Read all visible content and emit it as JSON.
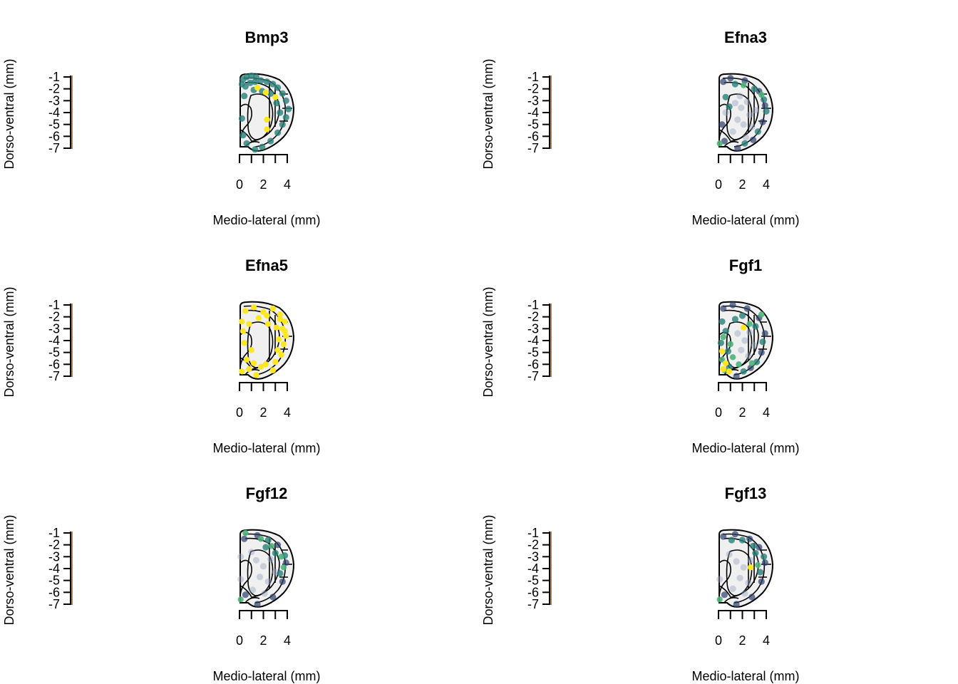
{
  "figure": {
    "background": "#ffffff",
    "layout": "3 rows x 2 columns",
    "palette": {
      "low": "#9aa3c2",
      "mid_low": "#2d3f6b",
      "mid": "#2a7f7b",
      "mid_high": "#4fb27a",
      "high": "#fde725"
    }
  },
  "chart_data": [
    {
      "type": "scatter",
      "title": "Bmp3",
      "xlabel": "Medio-lateral (mm)",
      "ylabel": "Dorso-ventral (mm)",
      "x_ticks": [
        "0",
        "2",
        "4"
      ],
      "y_ticks": [
        "-1",
        "-2",
        "-3",
        "-4",
        "-5",
        "-6",
        "-7"
      ],
      "xlim": [
        0,
        4
      ],
      "ylim": [
        -7,
        -1
      ],
      "grid": false,
      "legend": "none",
      "points": [
        {
          "x": 0.3,
          "y": -1.2,
          "level": 3
        },
        {
          "x": 0.6,
          "y": -1.0,
          "level": 3
        },
        {
          "x": 1.0,
          "y": -0.9,
          "level": 3
        },
        {
          "x": 1.4,
          "y": -1.0,
          "level": 3
        },
        {
          "x": 0.2,
          "y": -1.6,
          "level": 3
        },
        {
          "x": 0.5,
          "y": -1.8,
          "level": 3
        },
        {
          "x": 0.9,
          "y": -1.5,
          "level": 3
        },
        {
          "x": 1.3,
          "y": -1.4,
          "level": 3
        },
        {
          "x": 1.8,
          "y": -1.3,
          "level": 3
        },
        {
          "x": 2.3,
          "y": -1.4,
          "level": 3
        },
        {
          "x": 2.8,
          "y": -1.6,
          "level": 3
        },
        {
          "x": 3.2,
          "y": -1.9,
          "level": 3
        },
        {
          "x": 3.6,
          "y": -2.4,
          "level": 3
        },
        {
          "x": 3.9,
          "y": -3.0,
          "level": 3
        },
        {
          "x": 4.1,
          "y": -3.7,
          "level": 3
        },
        {
          "x": 3.9,
          "y": -4.4,
          "level": 3
        },
        {
          "x": 3.6,
          "y": -5.0,
          "level": 3
        },
        {
          "x": 3.2,
          "y": -5.7,
          "level": 3
        },
        {
          "x": 2.6,
          "y": -6.4,
          "level": 3
        },
        {
          "x": 1.9,
          "y": -6.9,
          "level": 3
        },
        {
          "x": 1.3,
          "y": -7.1,
          "level": 3
        },
        {
          "x": 0.6,
          "y": -6.6,
          "level": 3
        },
        {
          "x": 0.3,
          "y": -5.9,
          "level": 3
        },
        {
          "x": 0.2,
          "y": -4.5,
          "level": 3
        },
        {
          "x": 0.4,
          "y": -2.6,
          "level": 3
        },
        {
          "x": 2.6,
          "y": -2.4,
          "level": 3
        },
        {
          "x": 3.1,
          "y": -3.2,
          "level": 3
        },
        {
          "x": 1.9,
          "y": -2.2,
          "level": 3
        },
        {
          "x": 3.4,
          "y": -4.0,
          "level": 3
        },
        {
          "x": 1.2,
          "y": -2.1,
          "level": 3
        },
        {
          "x": 1.5,
          "y": -1.9,
          "level": 5
        },
        {
          "x": 2.2,
          "y": -2.3,
          "level": 5
        },
        {
          "x": 3.0,
          "y": -2.7,
          "level": 5
        },
        {
          "x": 2.3,
          "y": -4.6,
          "level": 5
        },
        {
          "x": 2.3,
          "y": -5.4,
          "level": 5
        }
      ]
    },
    {
      "type": "scatter",
      "title": "Efna3",
      "xlabel": "Medio-lateral (mm)",
      "ylabel": "Dorso-ventral (mm)",
      "x_ticks": [
        "0",
        "2",
        "4"
      ],
      "y_ticks": [
        "-1",
        "-2",
        "-3",
        "-4",
        "-5",
        "-6",
        "-7"
      ],
      "xlim": [
        0,
        4
      ],
      "ylim": [
        -7,
        -1
      ],
      "grid": false,
      "legend": "none",
      "points": [
        {
          "x": 1.4,
          "y": -3.2,
          "level": 1
        },
        {
          "x": 1.9,
          "y": -3.6,
          "level": 1
        },
        {
          "x": 2.4,
          "y": -3.1,
          "level": 1
        },
        {
          "x": 2.6,
          "y": -4.2,
          "level": 1
        },
        {
          "x": 1.6,
          "y": -4.6,
          "level": 1
        },
        {
          "x": 2.1,
          "y": -5.0,
          "level": 1
        },
        {
          "x": 2.8,
          "y": -5.2,
          "level": 1
        },
        {
          "x": 1.2,
          "y": -5.6,
          "level": 1
        },
        {
          "x": 1.8,
          "y": -2.6,
          "level": 1
        },
        {
          "x": 3.1,
          "y": -3.8,
          "level": 1
        },
        {
          "x": 0.6,
          "y": -4.0,
          "level": 1
        },
        {
          "x": 2.3,
          "y": -6.1,
          "level": 1
        },
        {
          "x": 0.4,
          "y": -1.4,
          "level": 2
        },
        {
          "x": 1.0,
          "y": -1.1,
          "level": 2
        },
        {
          "x": 2.2,
          "y": -1.3,
          "level": 2
        },
        {
          "x": 3.4,
          "y": -2.2,
          "level": 2
        },
        {
          "x": 3.9,
          "y": -3.4,
          "level": 2
        },
        {
          "x": 3.7,
          "y": -4.8,
          "level": 2
        },
        {
          "x": 2.9,
          "y": -6.3,
          "level": 2
        },
        {
          "x": 1.6,
          "y": -7.0,
          "level": 2
        },
        {
          "x": 0.5,
          "y": -6.4,
          "level": 2
        },
        {
          "x": 0.3,
          "y": -5.0,
          "level": 2
        },
        {
          "x": 3.0,
          "y": -2.0,
          "level": 3
        },
        {
          "x": 3.8,
          "y": -2.9,
          "level": 3
        },
        {
          "x": 4.0,
          "y": -3.9,
          "level": 3
        },
        {
          "x": 0.6,
          "y": -2.7,
          "level": 3
        },
        {
          "x": 1.4,
          "y": -1.6,
          "level": 3
        },
        {
          "x": 3.3,
          "y": -5.6,
          "level": 3
        },
        {
          "x": 2.2,
          "y": -6.6,
          "level": 3
        },
        {
          "x": 0.9,
          "y": -3.5,
          "level": 3
        },
        {
          "x": 2.1,
          "y": -1.7,
          "level": 4
        },
        {
          "x": 0.1,
          "y": -6.6,
          "level": 4
        },
        {
          "x": 3.6,
          "y": -2.5,
          "level": 4
        }
      ]
    },
    {
      "type": "scatter",
      "title": "Efna5",
      "xlabel": "Medio-lateral (mm)",
      "ylabel": "Dorso-ventral (mm)",
      "x_ticks": [
        "0",
        "2",
        "4"
      ],
      "y_ticks": [
        "-1",
        "-2",
        "-3",
        "-4",
        "-5",
        "-6",
        "-7"
      ],
      "xlim": [
        0,
        4
      ],
      "ylim": [
        -7,
        -1
      ],
      "grid": false,
      "legend": "none",
      "points": [
        {
          "x": 0.5,
          "y": -1.5,
          "level": 5
        },
        {
          "x": 1.2,
          "y": -1.2,
          "level": 5
        },
        {
          "x": 2.0,
          "y": -1.6,
          "level": 5
        },
        {
          "x": 2.8,
          "y": -1.3,
          "level": 5
        },
        {
          "x": 3.4,
          "y": -1.8,
          "level": 5
        },
        {
          "x": 3.8,
          "y": -2.4,
          "level": 5
        },
        {
          "x": 3.6,
          "y": -3.0,
          "level": 5
        },
        {
          "x": 3.9,
          "y": -3.6,
          "level": 5
        },
        {
          "x": 3.3,
          "y": -3.9,
          "level": 5
        },
        {
          "x": 3.7,
          "y": -4.3,
          "level": 5
        },
        {
          "x": 3.5,
          "y": -5.2,
          "level": 5
        },
        {
          "x": 3.0,
          "y": -5.8,
          "level": 5
        },
        {
          "x": 2.8,
          "y": -6.5,
          "level": 5
        },
        {
          "x": 1.8,
          "y": -6.2,
          "level": 5
        },
        {
          "x": 1.4,
          "y": -6.9,
          "level": 5
        },
        {
          "x": 0.8,
          "y": -6.4,
          "level": 5
        },
        {
          "x": 0.2,
          "y": -6.6,
          "level": 5
        },
        {
          "x": 0.6,
          "y": -5.6,
          "level": 5
        },
        {
          "x": 1.0,
          "y": -4.8,
          "level": 5
        },
        {
          "x": 0.4,
          "y": -4.2,
          "level": 5
        },
        {
          "x": 0.3,
          "y": -3.2,
          "level": 5
        },
        {
          "x": 0.8,
          "y": -2.6,
          "level": 5
        },
        {
          "x": 1.6,
          "y": -2.1,
          "level": 5
        },
        {
          "x": 2.4,
          "y": -2.6,
          "level": 5
        },
        {
          "x": 3.1,
          "y": -2.9,
          "level": 5
        },
        {
          "x": 3.4,
          "y": -2.2,
          "level": 5
        },
        {
          "x": 2.3,
          "y": -1.9,
          "level": 5
        },
        {
          "x": 0.2,
          "y": -2.4,
          "level": 5
        },
        {
          "x": 3.2,
          "y": -4.8,
          "level": 5
        },
        {
          "x": 1.2,
          "y": -5.9,
          "level": 5
        },
        {
          "x": 2.2,
          "y": -6.0,
          "level": 5
        },
        {
          "x": 3.8,
          "y": -3.2,
          "level": 5
        }
      ]
    },
    {
      "type": "scatter",
      "title": "Fgf1",
      "xlabel": "Medio-lateral (mm)",
      "ylabel": "Dorso-ventral (mm)",
      "x_ticks": [
        "0",
        "2",
        "4"
      ],
      "y_ticks": [
        "-1",
        "-2",
        "-3",
        "-4",
        "-5",
        "-6",
        "-7"
      ],
      "xlim": [
        0,
        4
      ],
      "ylim": [
        -7,
        -1
      ],
      "grid": false,
      "legend": "none",
      "points": [
        {
          "x": 1.6,
          "y": -3.4,
          "level": 1
        },
        {
          "x": 2.2,
          "y": -4.0,
          "level": 1
        },
        {
          "x": 2.6,
          "y": -3.3,
          "level": 1
        },
        {
          "x": 1.9,
          "y": -4.8,
          "level": 1
        },
        {
          "x": 2.5,
          "y": -5.3,
          "level": 1
        },
        {
          "x": 3.0,
          "y": -4.4,
          "level": 1
        },
        {
          "x": 0.4,
          "y": -1.3,
          "level": 2
        },
        {
          "x": 1.2,
          "y": -1.0,
          "level": 2
        },
        {
          "x": 2.4,
          "y": -1.3,
          "level": 2
        },
        {
          "x": 3.4,
          "y": -2.1,
          "level": 2
        },
        {
          "x": 3.9,
          "y": -3.4,
          "level": 2
        },
        {
          "x": 3.6,
          "y": -5.0,
          "level": 2
        },
        {
          "x": 2.7,
          "y": -6.3,
          "level": 2
        },
        {
          "x": 1.5,
          "y": -7.0,
          "level": 2
        },
        {
          "x": 0.3,
          "y": -2.4,
          "level": 3
        },
        {
          "x": 0.6,
          "y": -3.2,
          "level": 3
        },
        {
          "x": 0.2,
          "y": -4.2,
          "level": 3
        },
        {
          "x": 0.8,
          "y": -4.9,
          "level": 3
        },
        {
          "x": 1.4,
          "y": -2.2,
          "level": 3
        },
        {
          "x": 2.0,
          "y": -1.9,
          "level": 3
        },
        {
          "x": 3.1,
          "y": -2.8,
          "level": 3
        },
        {
          "x": 3.7,
          "y": -4.1,
          "level": 3
        },
        {
          "x": 3.2,
          "y": -5.8,
          "level": 3
        },
        {
          "x": 2.1,
          "y": -6.6,
          "level": 3
        },
        {
          "x": 0.9,
          "y": -6.2,
          "level": 3
        },
        {
          "x": 0.4,
          "y": -3.7,
          "level": 4
        },
        {
          "x": 1.0,
          "y": -4.3,
          "level": 4
        },
        {
          "x": 0.3,
          "y": -5.6,
          "level": 4
        },
        {
          "x": 1.2,
          "y": -5.4,
          "level": 4
        },
        {
          "x": 2.6,
          "y": -2.6,
          "level": 4
        },
        {
          "x": 3.6,
          "y": -1.8,
          "level": 4
        },
        {
          "x": 2.8,
          "y": -5.9,
          "level": 4
        },
        {
          "x": 0.5,
          "y": -6.5,
          "level": 4
        },
        {
          "x": 1.7,
          "y": -6.0,
          "level": 4
        },
        {
          "x": 2.1,
          "y": -2.9,
          "level": 5
        },
        {
          "x": 0.3,
          "y": -4.9,
          "level": 5
        },
        {
          "x": 0.6,
          "y": -5.9,
          "level": 5
        },
        {
          "x": 0.4,
          "y": -6.4,
          "level": 5
        },
        {
          "x": 0.9,
          "y": -6.6,
          "level": 5
        }
      ]
    },
    {
      "type": "scatter",
      "title": "Fgf12",
      "xlabel": "Medio-lateral (mm)",
      "ylabel": "Dorso-ventral (mm)",
      "x_ticks": [
        "0",
        "2",
        "4"
      ],
      "y_ticks": [
        "-1",
        "-2",
        "-3",
        "-4",
        "-5",
        "-6",
        "-7"
      ],
      "xlim": [
        0,
        4
      ],
      "ylim": [
        -7,
        -1
      ],
      "grid": false,
      "legend": "none",
      "points": [
        {
          "x": 1.4,
          "y": -3.3,
          "level": 1
        },
        {
          "x": 2.0,
          "y": -3.8,
          "level": 1
        },
        {
          "x": 2.6,
          "y": -3.2,
          "level": 1
        },
        {
          "x": 1.7,
          "y": -4.7,
          "level": 1
        },
        {
          "x": 2.4,
          "y": -5.1,
          "level": 1
        },
        {
          "x": 3.0,
          "y": -4.3,
          "level": 1
        },
        {
          "x": 1.1,
          "y": -5.8,
          "level": 1
        },
        {
          "x": 2.1,
          "y": -6.1,
          "level": 1
        },
        {
          "x": 0.1,
          "y": -3.0,
          "level": 1
        },
        {
          "x": 0.1,
          "y": -4.9,
          "level": 1
        },
        {
          "x": 1.0,
          "y": -2.6,
          "level": 1
        },
        {
          "x": 0.4,
          "y": -1.5,
          "level": 2
        },
        {
          "x": 1.5,
          "y": -1.2,
          "level": 2
        },
        {
          "x": 3.2,
          "y": -2.0,
          "level": 2
        },
        {
          "x": 3.9,
          "y": -3.5,
          "level": 2
        },
        {
          "x": 3.6,
          "y": -5.1,
          "level": 2
        },
        {
          "x": 2.8,
          "y": -6.4,
          "level": 2
        },
        {
          "x": 1.5,
          "y": -7.0,
          "level": 2
        },
        {
          "x": 0.5,
          "y": -6.2,
          "level": 2
        },
        {
          "x": 2.4,
          "y": -1.6,
          "level": 3
        },
        {
          "x": 3.0,
          "y": -2.7,
          "level": 3
        },
        {
          "x": 3.8,
          "y": -2.9,
          "level": 3
        },
        {
          "x": 3.4,
          "y": -4.4,
          "level": 3
        },
        {
          "x": 2.2,
          "y": -2.2,
          "level": 3
        },
        {
          "x": 0.5,
          "y": -1.0,
          "level": 4
        },
        {
          "x": 2.7,
          "y": -2.1,
          "level": 4
        },
        {
          "x": 3.5,
          "y": -3.0,
          "level": 4
        },
        {
          "x": 3.7,
          "y": -3.9,
          "level": 4
        },
        {
          "x": 0.1,
          "y": -6.6,
          "level": 4
        },
        {
          "x": 1.8,
          "y": -1.5,
          "level": 4
        }
      ]
    },
    {
      "type": "scatter",
      "title": "Fgf13",
      "xlabel": "Medio-lateral (mm)",
      "ylabel": "Dorso-ventral (mm)",
      "x_ticks": [
        "0",
        "2",
        "4"
      ],
      "y_ticks": [
        "-1",
        "-2",
        "-3",
        "-4",
        "-5",
        "-6",
        "-7"
      ],
      "xlim": [
        0,
        4
      ],
      "ylim": [
        -7,
        -1
      ],
      "grid": false,
      "legend": "none",
      "points": [
        {
          "x": 1.5,
          "y": -3.4,
          "level": 1
        },
        {
          "x": 2.1,
          "y": -3.9,
          "level": 1
        },
        {
          "x": 2.7,
          "y": -3.3,
          "level": 1
        },
        {
          "x": 1.8,
          "y": -4.8,
          "level": 1
        },
        {
          "x": 2.5,
          "y": -5.2,
          "level": 1
        },
        {
          "x": 1.2,
          "y": -5.7,
          "level": 1
        },
        {
          "x": 2.2,
          "y": -6.1,
          "level": 1
        },
        {
          "x": 0.1,
          "y": -4.9,
          "level": 1
        },
        {
          "x": 0.9,
          "y": -2.8,
          "level": 1
        },
        {
          "x": 0.4,
          "y": -1.3,
          "level": 2
        },
        {
          "x": 1.4,
          "y": -1.1,
          "level": 2
        },
        {
          "x": 2.6,
          "y": -1.5,
          "level": 2
        },
        {
          "x": 3.4,
          "y": -2.2,
          "level": 2
        },
        {
          "x": 3.9,
          "y": -3.5,
          "level": 2
        },
        {
          "x": 3.6,
          "y": -5.1,
          "level": 2
        },
        {
          "x": 2.8,
          "y": -6.4,
          "level": 2
        },
        {
          "x": 1.5,
          "y": -7.0,
          "level": 2
        },
        {
          "x": 0.5,
          "y": -6.2,
          "level": 2
        },
        {
          "x": 2.0,
          "y": -1.6,
          "level": 3
        },
        {
          "x": 3.1,
          "y": -2.7,
          "level": 3
        },
        {
          "x": 3.8,
          "y": -3.0,
          "level": 3
        },
        {
          "x": 3.5,
          "y": -4.3,
          "level": 3
        },
        {
          "x": 2.9,
          "y": -2.1,
          "level": 3
        },
        {
          "x": 1.1,
          "y": -1.6,
          "level": 3
        },
        {
          "x": 3.3,
          "y": -3.7,
          "level": 4
        },
        {
          "x": 0.1,
          "y": -6.6,
          "level": 4
        },
        {
          "x": 2.7,
          "y": -3.9,
          "level": 5
        }
      ]
    }
  ]
}
